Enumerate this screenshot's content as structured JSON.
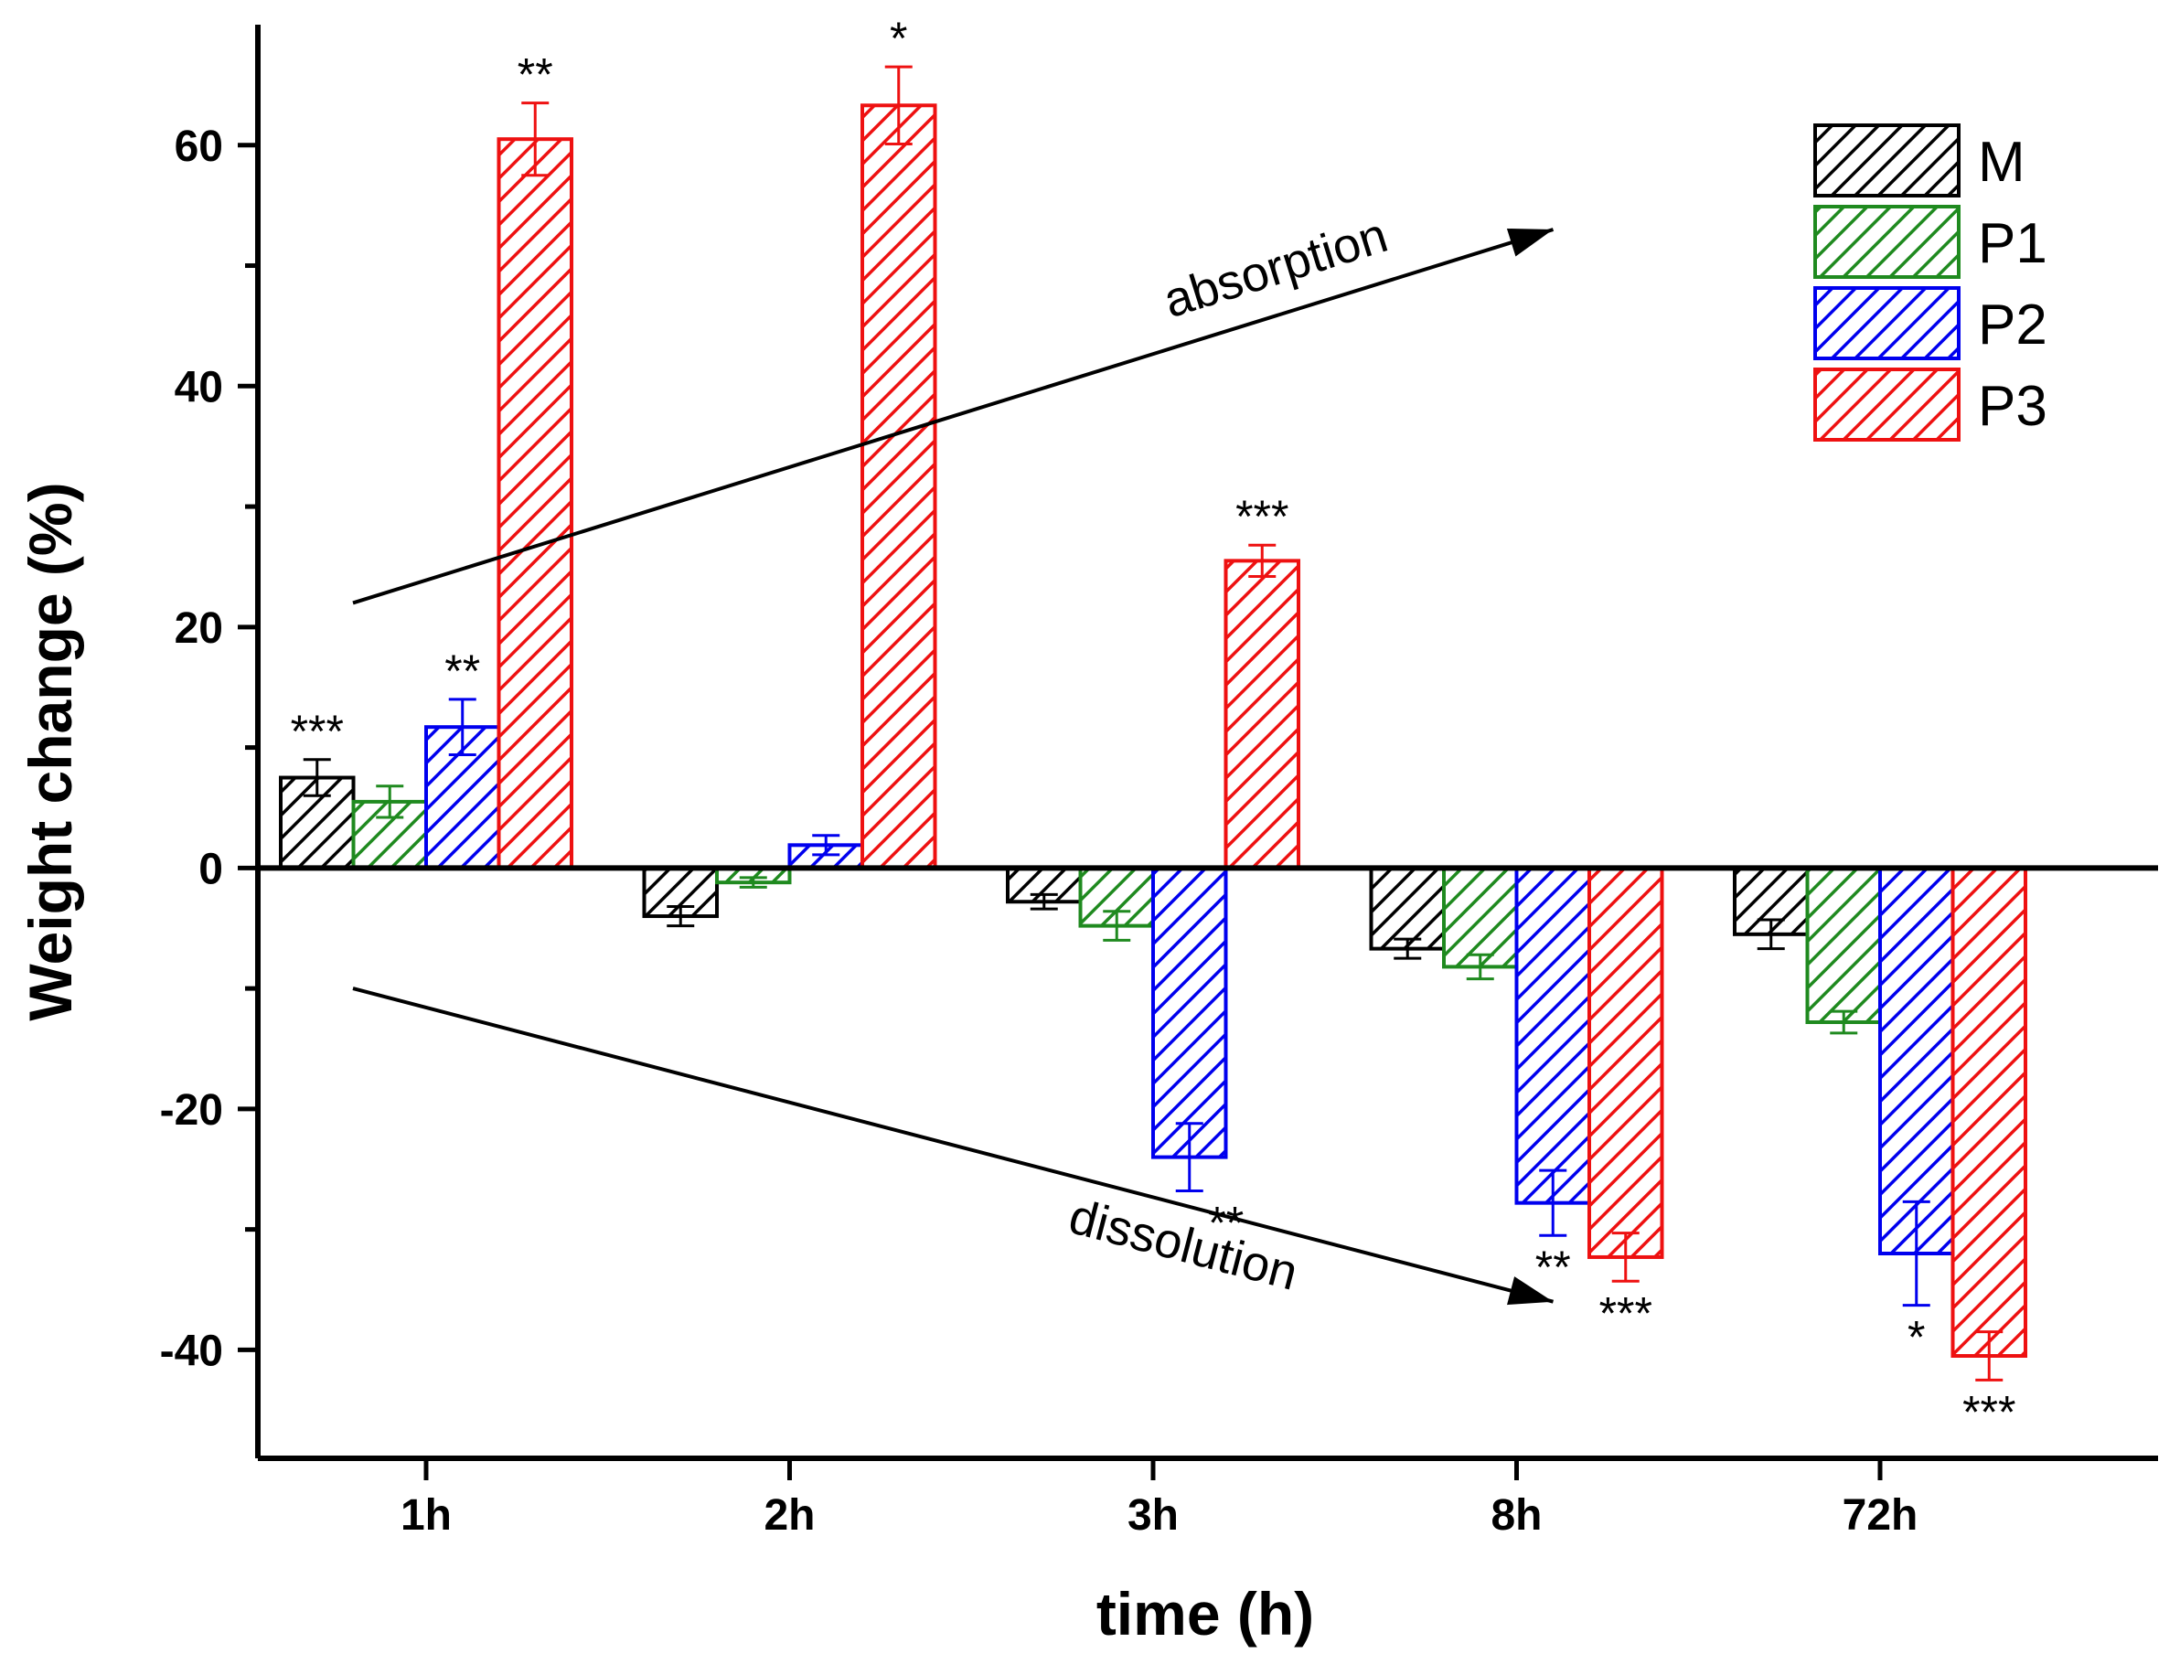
{
  "chart_data": {
    "type": "bar",
    "xlabel": "time (h)",
    "ylabel": "Weight change (%)",
    "ylim": [
      -49,
      70
    ],
    "yticks": [
      -40,
      -20,
      0,
      20,
      40,
      60
    ],
    "ytick_labels": [
      "-40",
      "-20",
      "0",
      "20",
      "40",
      "60"
    ],
    "categories": [
      "1h",
      "2h",
      "3h",
      "8h",
      "72h"
    ],
    "legend_position": "top-right",
    "grid": false,
    "fill_pattern": "diagonal hatch",
    "series": [
      {
        "name": "M",
        "color": "#000000",
        "values": [
          7.5,
          -4.0,
          -2.8,
          -6.7,
          -5.5
        ],
        "errors": [
          1.5,
          0.8,
          0.6,
          0.8,
          1.2
        ],
        "significance": [
          "***",
          "",
          "",
          "",
          ""
        ]
      },
      {
        "name": "P1",
        "color": "#1f8a1f",
        "values": [
          5.5,
          -1.2,
          -4.8,
          -8.2,
          -12.8
        ],
        "errors": [
          1.3,
          0.4,
          1.2,
          1.0,
          0.9
        ],
        "significance": [
          "",
          "",
          "",
          "",
          ""
        ]
      },
      {
        "name": "P2",
        "color": "#0000ee",
        "values": [
          11.7,
          1.9,
          -24.0,
          -27.8,
          -32.0
        ],
        "errors": [
          2.3,
          0.8,
          2.8,
          2.7,
          4.3
        ],
        "significance": [
          "**",
          "",
          "**",
          "**",
          "*"
        ]
      },
      {
        "name": "P3",
        "color": "#ee1111",
        "values": [
          60.5,
          63.3,
          25.5,
          -32.3,
          -40.5
        ],
        "errors": [
          3.0,
          3.2,
          1.3,
          2.0,
          2.0
        ],
        "significance": [
          "**",
          "*",
          "***",
          "***",
          "***"
        ]
      }
    ],
    "annotations": [
      {
        "text": "absorption",
        "from": [
          "1h",
          22
        ],
        "to": [
          "8h",
          53
        ]
      },
      {
        "text": "dissolution",
        "from": [
          "1h",
          -10
        ],
        "to": [
          "8h",
          -36
        ]
      }
    ]
  }
}
